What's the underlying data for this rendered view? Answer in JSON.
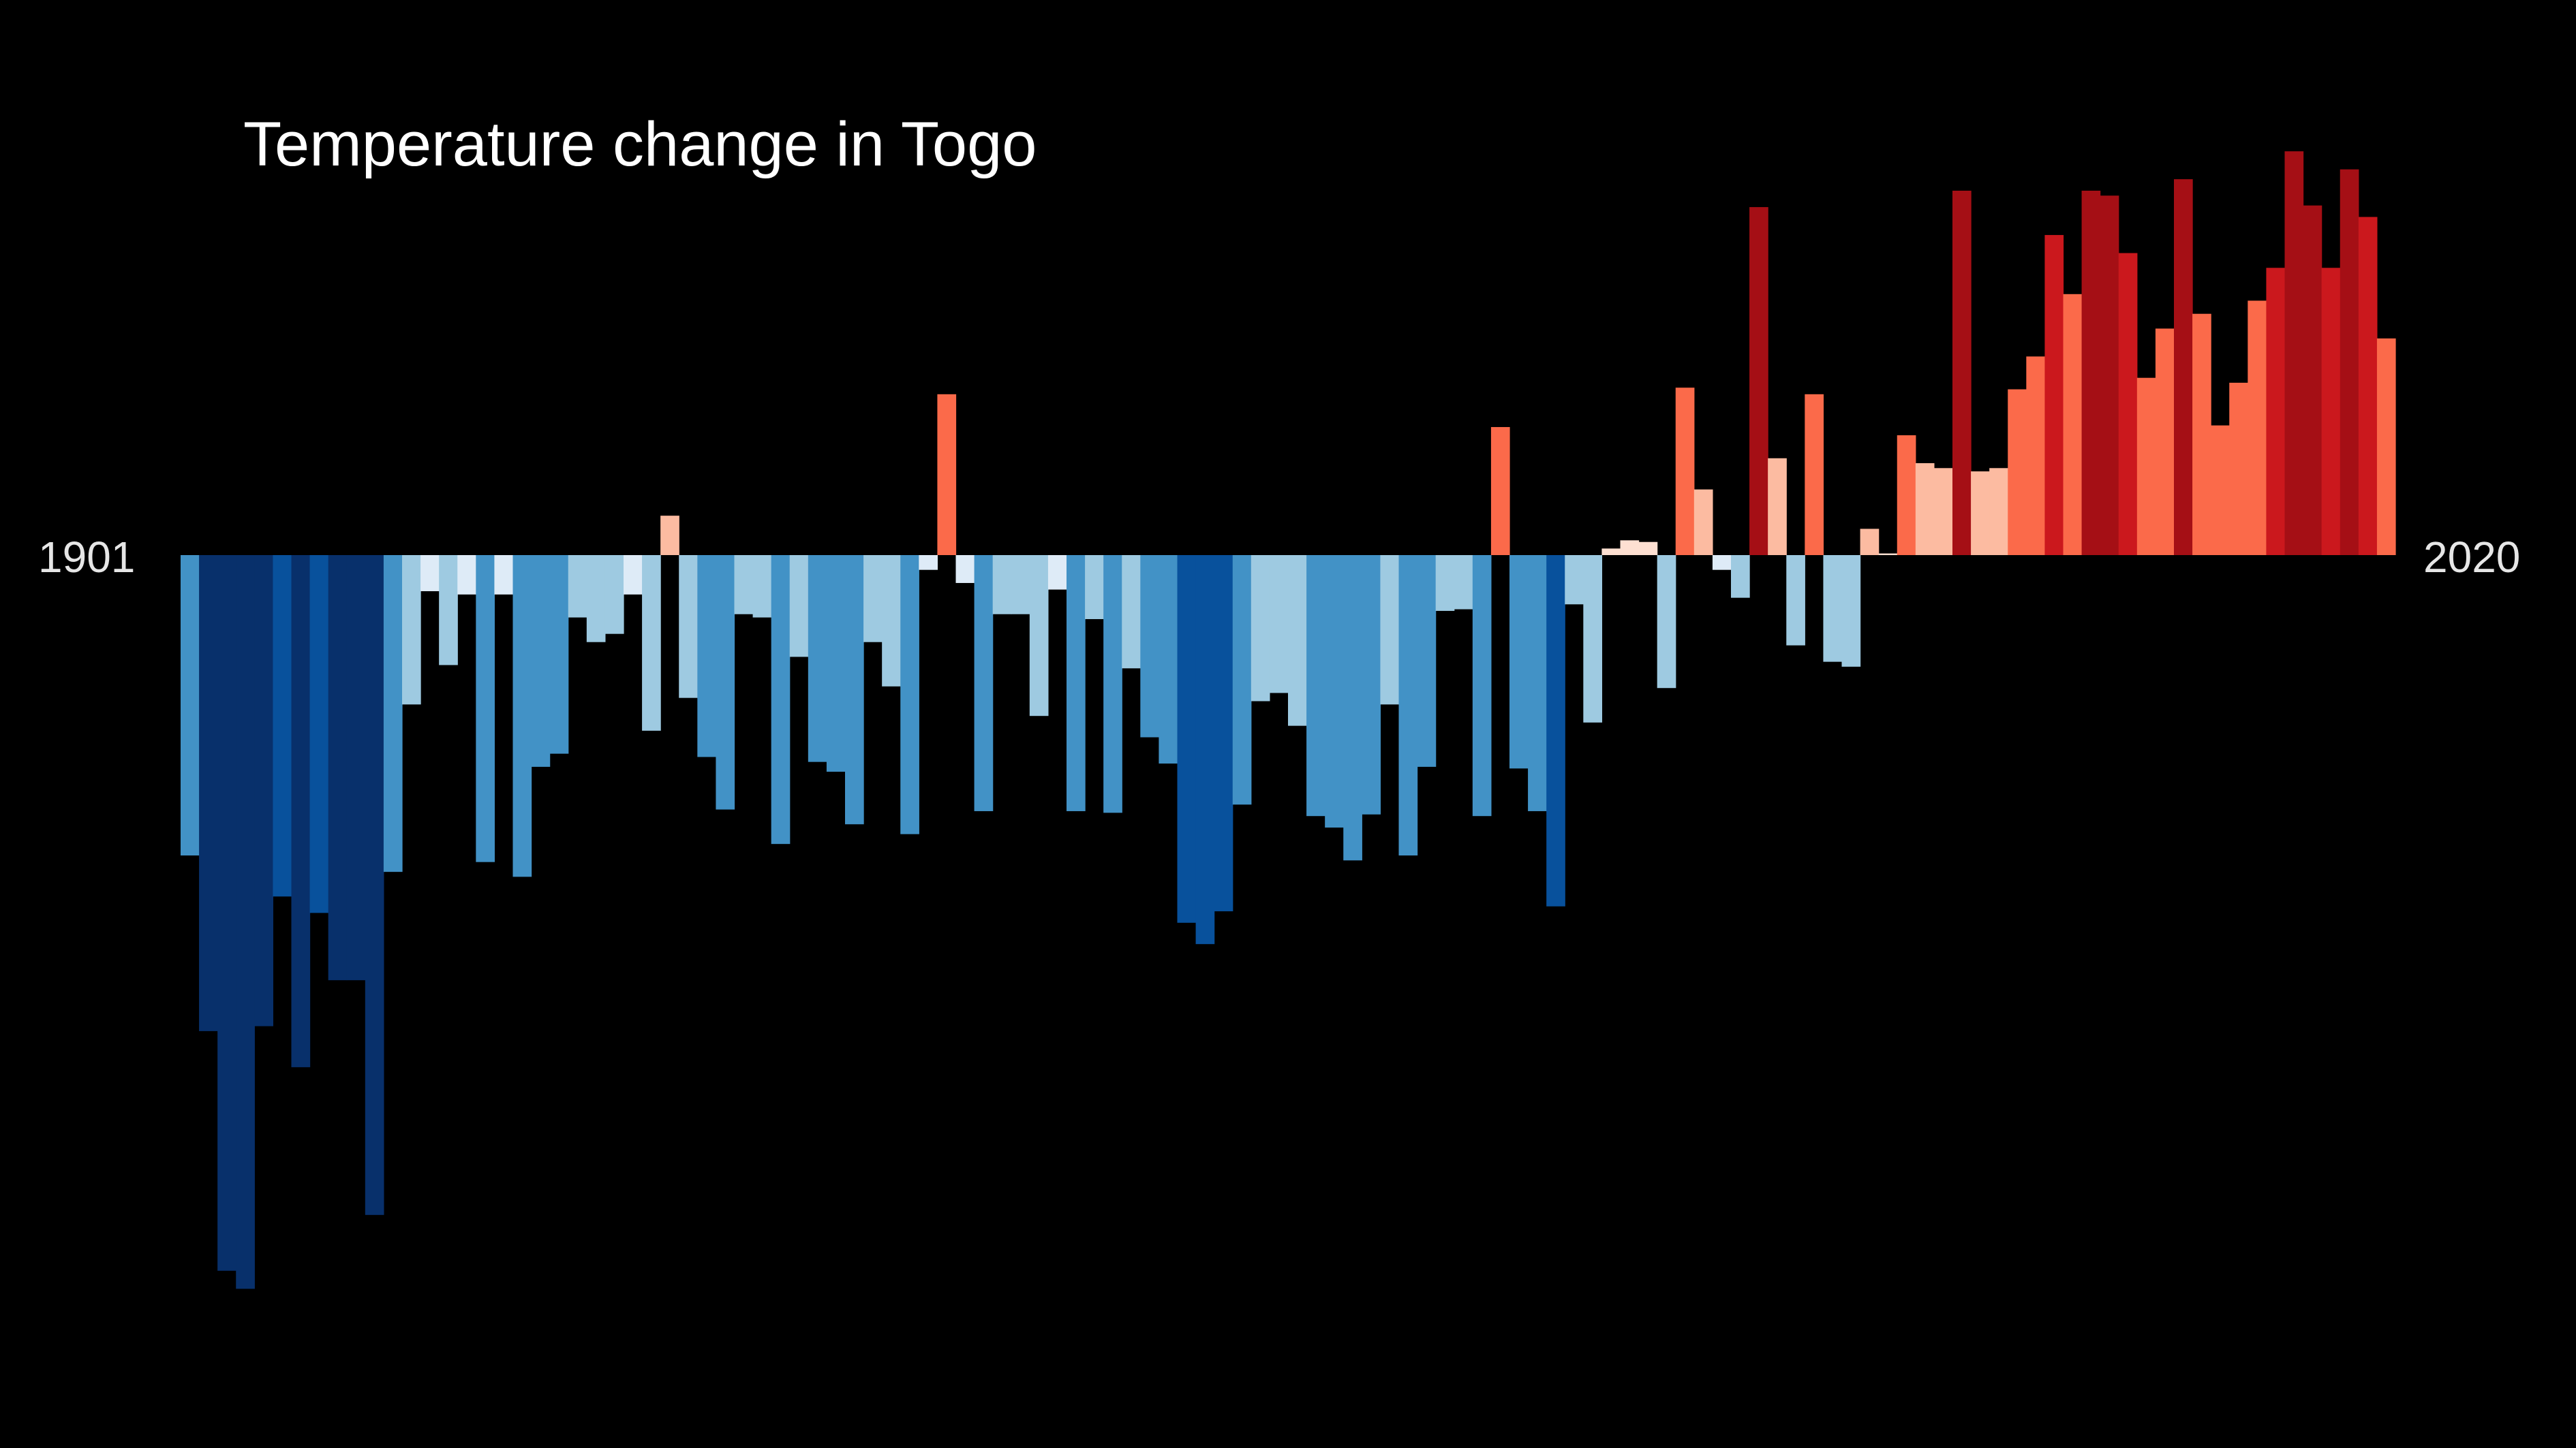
{
  "chart_data": {
    "type": "bar",
    "title": "Temperature change in Togo",
    "start_label": "1901",
    "end_label": "2020",
    "x_start": 1901,
    "x_end": 2020,
    "ylim": [
      -45,
      25
    ],
    "grid": false,
    "legend": "none",
    "colors": {
      "background": "#000000",
      "cold_extreme": "#08306b",
      "cold_strong": "#08519c",
      "cold": "#4292c6",
      "cool": "#9ecae1",
      "cool_light": "#deebf7",
      "neutral": "#fee0d2",
      "warm_light": "#fcbba1",
      "warm": "#fb6a4a",
      "hot": "#cb181d",
      "hot_extreme": "#a50f15"
    },
    "values": [
      -18.3,
      -29,
      -43.6,
      -44.7,
      -28.7,
      -20.8,
      -31.2,
      -21.8,
      -25.9,
      -25.9,
      -40.2,
      -19.3,
      -9.1,
      -2.2,
      -6.7,
      -2.4,
      -18.7,
      -2.4,
      -19.6,
      -12.9,
      -12.1,
      -3.8,
      -5.3,
      -4.8,
      -2.4,
      -10.7,
      2.4,
      -8.7,
      -12.3,
      -15.5,
      -3.6,
      -3.8,
      -17.6,
      -6.2,
      -12.6,
      -13.2,
      -16.4,
      -5.3,
      -8,
      -17,
      -0.9,
      9.8,
      -1.7,
      -15.6,
      -3.6,
      -3.6,
      -9.8,
      -2.1,
      -15.6,
      -3.9,
      -15.7,
      -6.9,
      -11.1,
      -12.7,
      -22.4,
      -23.7,
      -21.7,
      -15.2,
      -8.9,
      -8.4,
      -10.4,
      -15.9,
      -16.6,
      -18.6,
      -15.8,
      -9.1,
      -18.3,
      -12.9,
      -3.4,
      -3.3,
      -15.9,
      7.8,
      -13,
      -15.6,
      -21.4,
      -3,
      -10.2,
      0.4,
      0.9,
      0.8,
      -8.1,
      10.2,
      4,
      -0.9,
      -2.6,
      21.2,
      5.9,
      -5.5,
      9.8,
      -6.5,
      -6.8,
      1.6,
      0.1,
      7.3,
      5.6,
      5.3,
      22.2,
      5.1,
      5.3,
      10.1,
      12.1,
      19.5,
      15.9,
      22.2,
      21.9,
      18.4,
      10.8,
      13.8,
      22.9,
      14.7,
      7.9,
      10.5,
      15.5,
      17.5,
      24.6,
      21.3,
      17.5,
      23.5,
      20.6,
      13.2
    ]
  }
}
